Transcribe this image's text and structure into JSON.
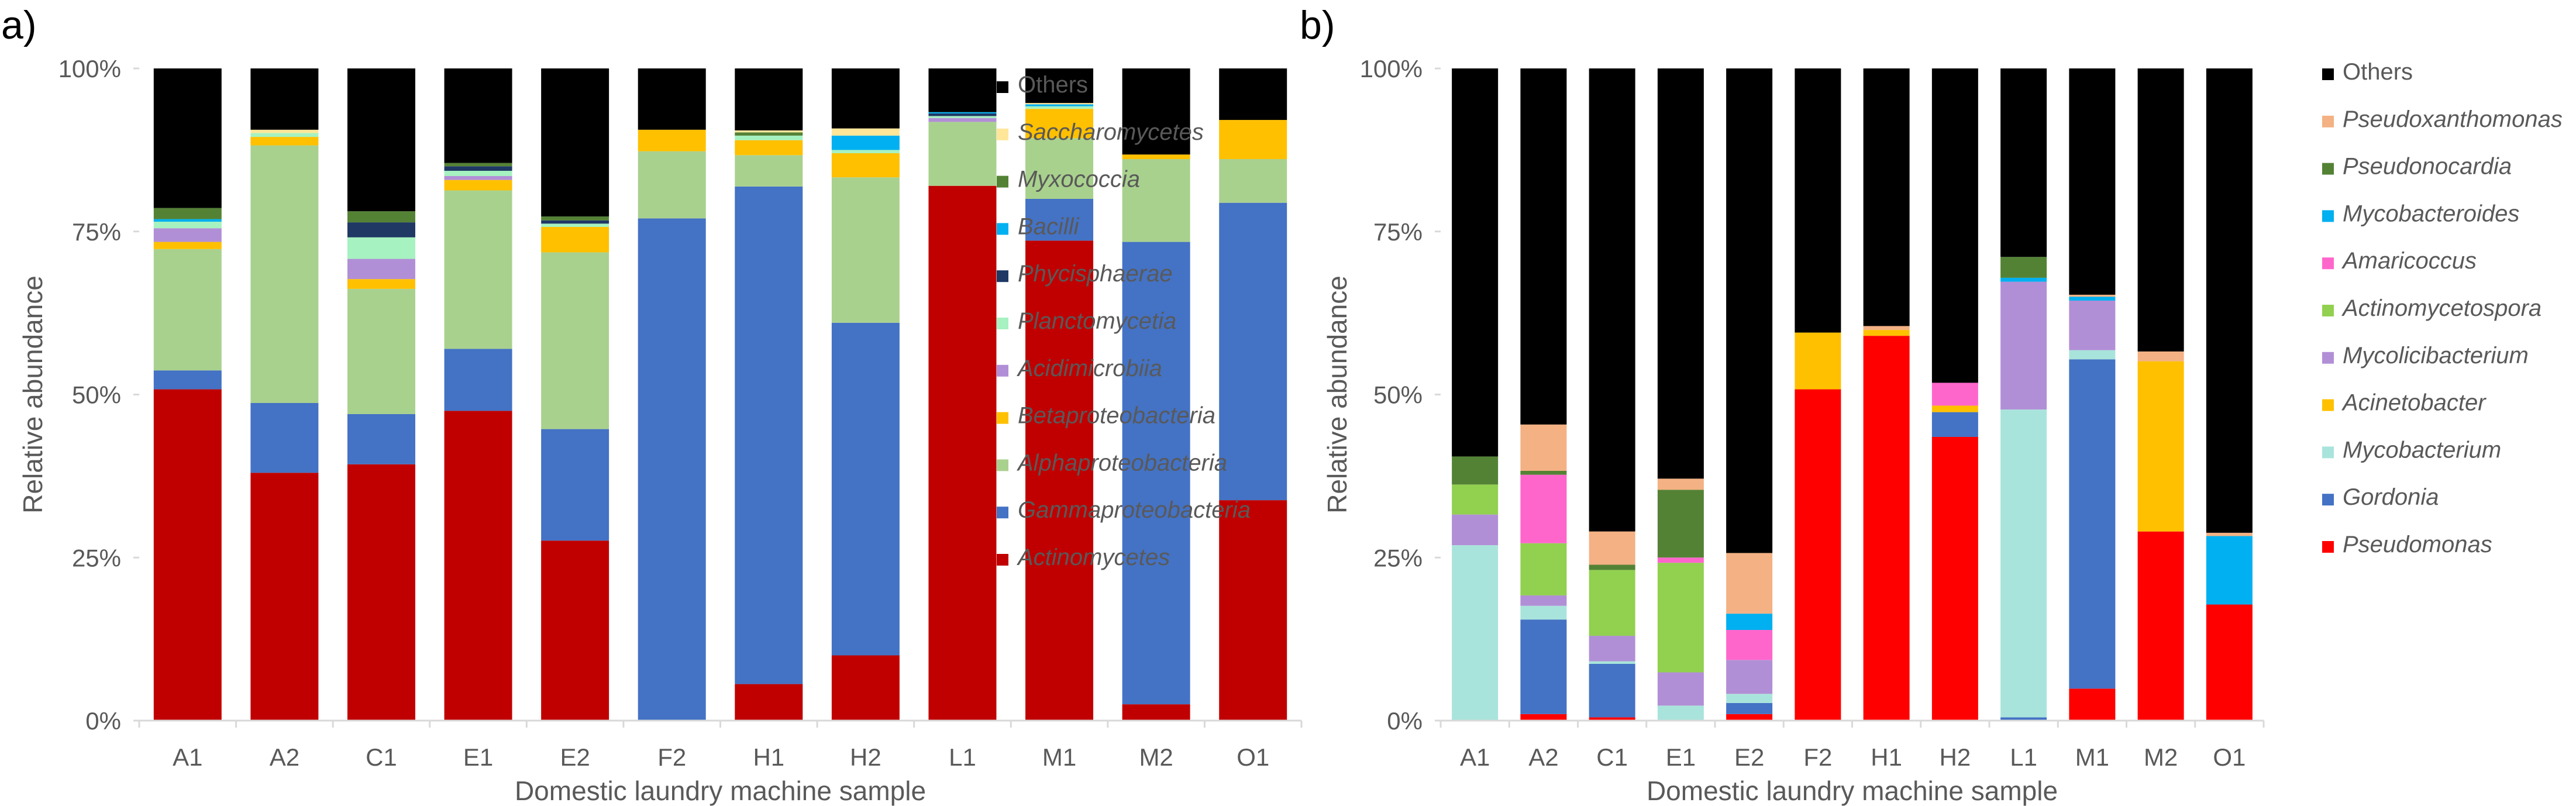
{
  "chart_data": [
    {
      "type": "bar",
      "stacked": true,
      "panel_label": "a)",
      "xlabel": "Domestic laundry machine sample",
      "ylabel": "Relative abundance",
      "ylim": [
        0,
        100
      ],
      "yticks": [
        "0%",
        "25%",
        "50%",
        "75%",
        "100%"
      ],
      "grid": false,
      "legend_position": "right",
      "categories": [
        "A1",
        "A2",
        "C1",
        "E1",
        "E2",
        "F2",
        "H1",
        "H2",
        "L1",
        "M1",
        "M2",
        "O1"
      ],
      "series": [
        {
          "name": "Actinomycetes",
          "color": "#c00000",
          "values": [
            50.8,
            38,
            39.3,
            47.5,
            27.6,
            0,
            5.6,
            10,
            82,
            73.6,
            2.5,
            33.8
          ]
        },
        {
          "name": "Gammaproteobacteria",
          "color": "#4472c4",
          "values": [
            2.9,
            10.7,
            7.7,
            9.5,
            17.1,
            77,
            76.3,
            51,
            0,
            6.4,
            70.9,
            45.6
          ]
        },
        {
          "name": "Alphaproteobacteria",
          "color": "#a9d18e",
          "values": [
            18.6,
            39.5,
            19.2,
            24.3,
            27.1,
            10.3,
            4.8,
            22.3,
            9.8,
            9.3,
            12.7,
            6.7
          ]
        },
        {
          "name": "Betaproteobacteria",
          "color": "#ffc000",
          "values": [
            1.1,
            1.3,
            1.5,
            1.6,
            3.9,
            3.3,
            2.3,
            3.7,
            0,
            4.5,
            0.7,
            6
          ]
        },
        {
          "name": "Acidimicrobiia",
          "color": "#b18fd6",
          "values": [
            2.1,
            0,
            3.1,
            0.6,
            0,
            0,
            0,
            0,
            0.6,
            0,
            0,
            0
          ]
        },
        {
          "name": "Planctomycetia",
          "color": "#a6f2c0",
          "values": [
            1,
            0.6,
            3.3,
            0.8,
            0.5,
            0,
            0.7,
            0.5,
            0.3,
            0.4,
            0,
            0
          ]
        },
        {
          "name": "Phycisphaerae",
          "color": "#1f3864",
          "values": [
            0,
            0,
            2.3,
            0.7,
            0.5,
            0,
            0,
            0,
            0.4,
            0,
            0,
            0
          ]
        },
        {
          "name": "Bacilli",
          "color": "#00b0f0",
          "values": [
            0.4,
            0,
            0,
            0,
            0,
            0,
            0,
            2.2,
            0.2,
            0.3,
            0,
            0
          ]
        },
        {
          "name": "Myxococcia",
          "color": "#548235",
          "values": [
            1.7,
            0,
            1.7,
            0.5,
            0.6,
            0,
            0.5,
            0,
            0,
            0,
            0,
            0
          ]
        },
        {
          "name": "Saccharomycetes",
          "color": "#ffe699",
          "values": [
            0,
            0.5,
            0,
            0,
            0,
            0,
            0.3,
            1.1,
            0,
            0.2,
            0,
            0
          ]
        },
        {
          "name": "Others",
          "color": "#000000",
          "values": [
            21.4,
            9.4,
            21.9,
            14.5,
            22.7,
            9.4,
            9.5,
            9.2,
            6.7,
            5.3,
            13.2,
            7.9
          ]
        }
      ]
    },
    {
      "type": "bar",
      "stacked": true,
      "panel_label": "b)",
      "xlabel": "Domestic laundry machine sample",
      "ylabel": "Relative abundance",
      "ylim": [
        0,
        100
      ],
      "yticks": [
        "0%",
        "25%",
        "50%",
        "75%",
        "100%"
      ],
      "grid": false,
      "legend_position": "right",
      "categories": [
        "A1",
        "A2",
        "C1",
        "E1",
        "E2",
        "F2",
        "H1",
        "H2",
        "L1",
        "M1",
        "M2",
        "O1"
      ],
      "series": [
        {
          "name": "Pseudomonas",
          "color": "#ff0000",
          "values": [
            0,
            1,
            0.5,
            0,
            1,
            50.8,
            59,
            43.5,
            0,
            4.9,
            29,
            17.8
          ]
        },
        {
          "name": "Gordonia",
          "color": "#4472c4",
          "values": [
            0,
            14.5,
            8.2,
            0,
            1.7,
            0,
            0,
            3.8,
            0.5,
            50.5,
            0,
            0
          ]
        },
        {
          "name": "Mycobacterium",
          "color": "#a9e4dc",
          "values": [
            26.9,
            2.1,
            0.4,
            2.3,
            1.4,
            0,
            0,
            0,
            47.2,
            1.4,
            0,
            0
          ]
        },
        {
          "name": "Acinetobacter",
          "color": "#ffc000",
          "values": [
            0,
            0,
            0,
            0,
            0,
            8.7,
            0.9,
            1,
            0,
            0,
            26.1,
            0
          ]
        },
        {
          "name": "Mycolicibacterium",
          "color": "#b18fd6",
          "values": [
            4.7,
            1.6,
            3.9,
            5.1,
            5.2,
            0,
            0,
            0,
            19.6,
            7.6,
            0,
            0
          ]
        },
        {
          "name": "Actinomycetospora",
          "color": "#92d050",
          "values": [
            4.6,
            8,
            10.1,
            16.8,
            0,
            0,
            0,
            0,
            0,
            0,
            0,
            0
          ]
        },
        {
          "name": "Amaricoccus",
          "color": "#ff66cc",
          "values": [
            0,
            10.5,
            0,
            0.8,
            4.6,
            0,
            0,
            3.5,
            0,
            0,
            0,
            0
          ]
        },
        {
          "name": "Mycobacteroides",
          "color": "#00b0f0",
          "values": [
            0,
            0,
            0,
            0,
            2.5,
            0,
            0,
            0,
            0.6,
            0.6,
            0,
            10.5
          ]
        },
        {
          "name": "Pseudonocardia",
          "color": "#548235",
          "values": [
            4.3,
            0.6,
            0.8,
            10.4,
            0,
            0,
            0,
            0,
            3.2,
            0,
            0,
            0
          ]
        },
        {
          "name": "Pseudoxanthomonas",
          "color": "#f4b183",
          "values": [
            0,
            7.1,
            5.1,
            1.7,
            9.3,
            0,
            0.6,
            0,
            0,
            0.3,
            1.5,
            0.5
          ]
        },
        {
          "name": "Others",
          "color": "#000000",
          "values": [
            59.5,
            54.6,
            71,
            62.9,
            74.3,
            40.5,
            39.5,
            48.2,
            28.9,
            34.7,
            43.4,
            71.2
          ]
        }
      ]
    }
  ]
}
